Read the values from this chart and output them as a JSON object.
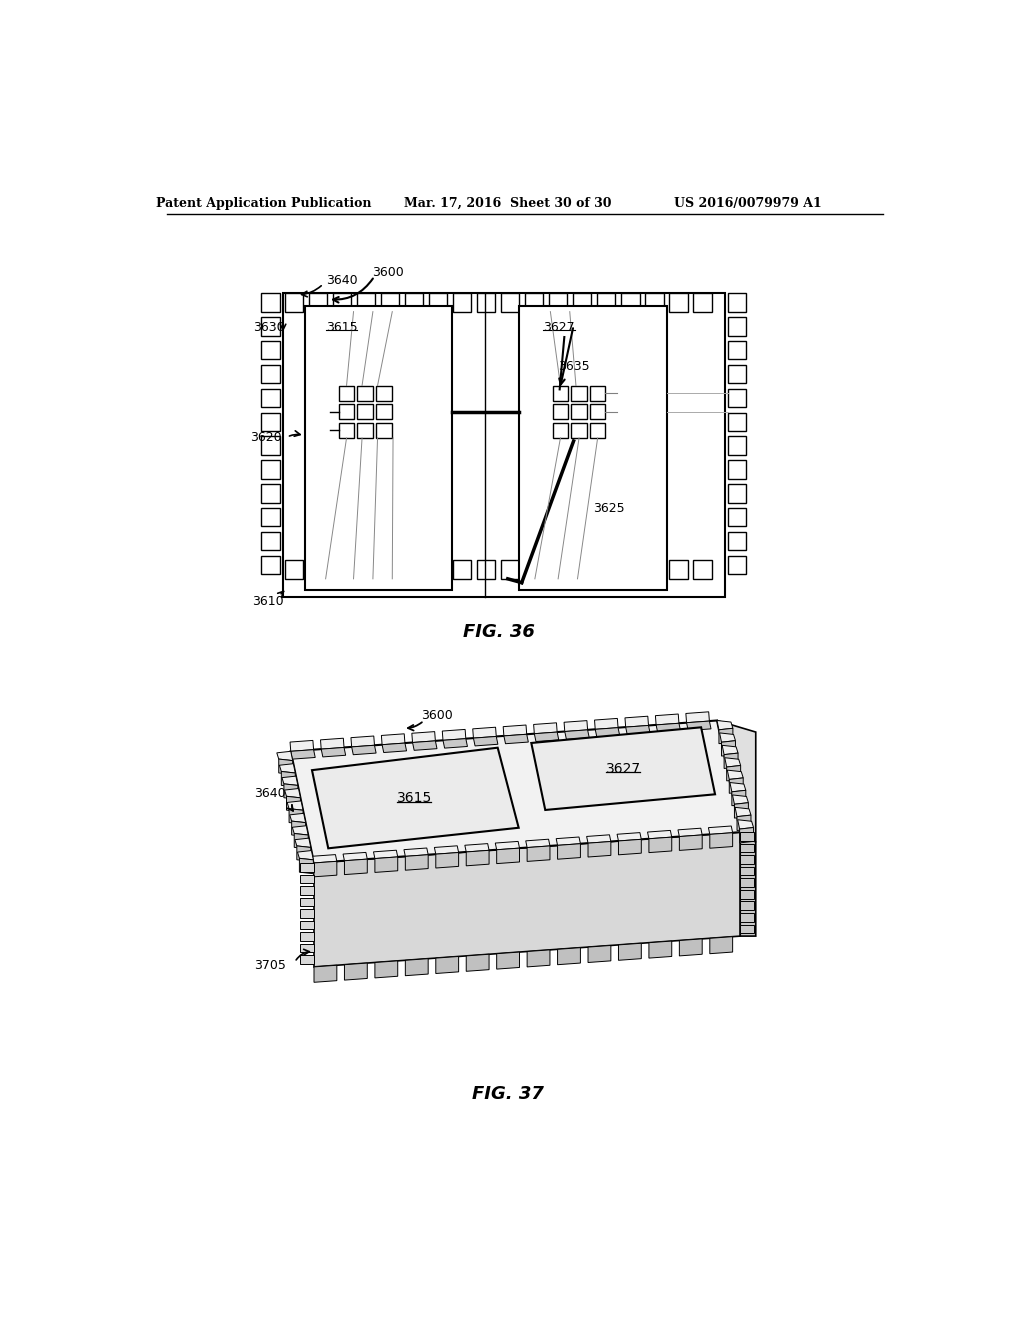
{
  "bg_color": "#ffffff",
  "header_left": "Patent Application Publication",
  "header_mid": "Mar. 17, 2016  Sheet 30 of 30",
  "header_right": "US 2016/0079979 A1",
  "fig36_caption": "FIG. 36",
  "fig37_caption": "FIG. 37",
  "labels": {
    "3600_top": "3600",
    "3640": "3640",
    "3630": "3630",
    "3615": "3615",
    "3620": "3620",
    "3610": "3610",
    "3627_top": "3627",
    "3635": "3635",
    "3625": "3625",
    "3600_bot": "3600",
    "3640_bot": "3640",
    "3615_bot": "3615",
    "3627_bot": "3627",
    "3705": "3705"
  }
}
